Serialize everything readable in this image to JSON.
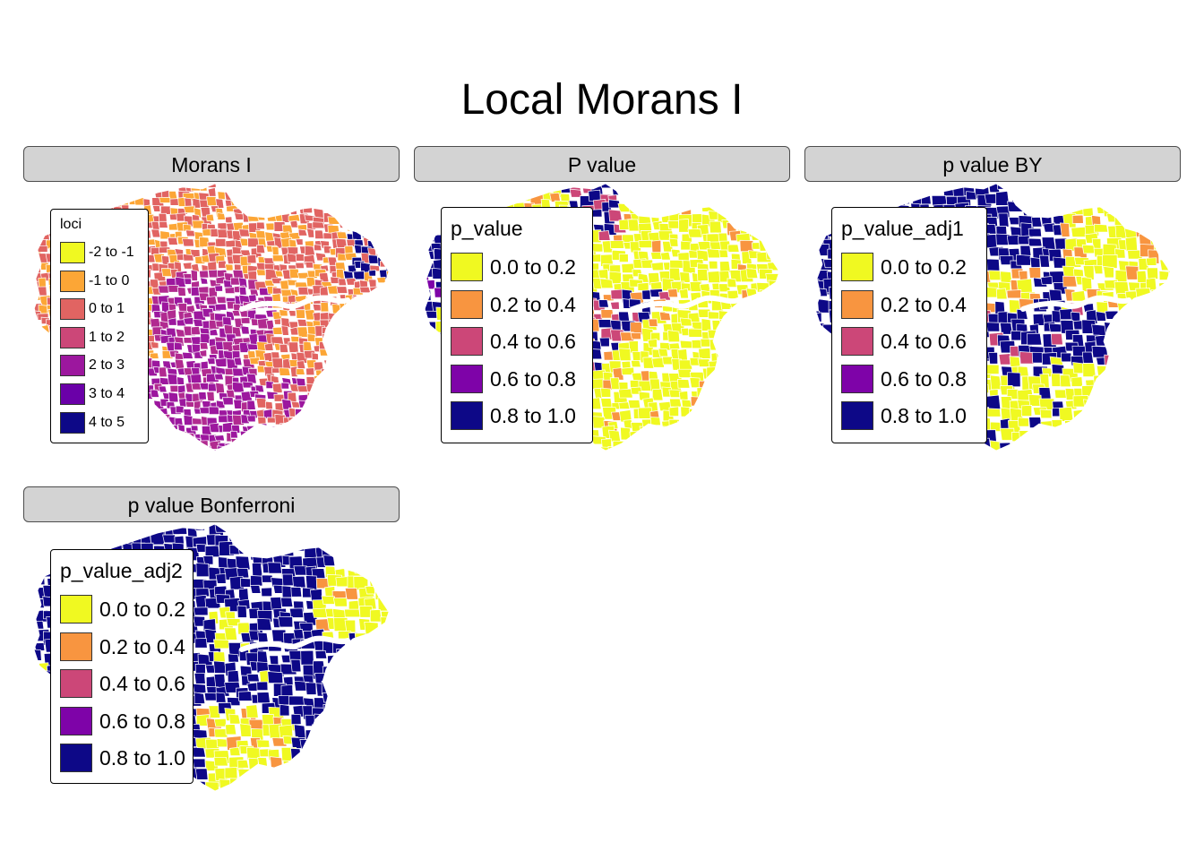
{
  "title": "Local Morans I",
  "palette": {
    "c1": "#f0f921",
    "c2": "#fca636",
    "c3": "#e16462",
    "c4": "#b12a90",
    "c5": "#6a00a8",
    "c6": "#0d0887",
    "c_orange": "#f89540",
    "c_pink": "#cc4778",
    "c_purple": "#7e03a8"
  },
  "panels": [
    {
      "id": "morans",
      "strip_label": "Morans I",
      "legend": {
        "title": "loci",
        "items": [
          {
            "label": "-2 to -1",
            "color": "#f0f921"
          },
          {
            "label": "-1 to 0",
            "color": "#fca636"
          },
          {
            "label": "0 to 1",
            "color": "#e16462"
          },
          {
            "label": "1 to 2",
            "color": "#cc4778"
          },
          {
            "label": "2 to 3",
            "color": "#9c179e"
          },
          {
            "label": "3 to 4",
            "color": "#6a00a8"
          },
          {
            "label": "4 to 5",
            "color": "#0d0887"
          }
        ]
      }
    },
    {
      "id": "pvalue",
      "strip_label": "P value",
      "legend": {
        "title": "p_value",
        "items": [
          {
            "label": "0.0 to 0.2",
            "color": "#f0f921"
          },
          {
            "label": "0.2 to 0.4",
            "color": "#f89540"
          },
          {
            "label": "0.4 to 0.6",
            "color": "#cc4778"
          },
          {
            "label": "0.6 to 0.8",
            "color": "#7e03a8"
          },
          {
            "label": "0.8 to 1.0",
            "color": "#0d0887"
          }
        ]
      }
    },
    {
      "id": "pby",
      "strip_label": "p value BY",
      "legend": {
        "title": "p_value_adj1",
        "items": [
          {
            "label": "0.0 to 0.2",
            "color": "#f0f921"
          },
          {
            "label": "0.2 to 0.4",
            "color": "#f89540"
          },
          {
            "label": "0.4 to 0.6",
            "color": "#cc4778"
          },
          {
            "label": "0.6 to 0.8",
            "color": "#7e03a8"
          },
          {
            "label": "0.8 to 1.0",
            "color": "#0d0887"
          }
        ]
      }
    },
    {
      "id": "pbonf",
      "strip_label": "p value Bonferroni",
      "legend": {
        "title": "p_value_adj2",
        "items": [
          {
            "label": "0.0 to 0.2",
            "color": "#f0f921"
          },
          {
            "label": "0.2 to 0.4",
            "color": "#f89540"
          },
          {
            "label": "0.4 to 0.6",
            "color": "#cc4778"
          },
          {
            "label": "0.6 to 0.8",
            "color": "#7e03a8"
          },
          {
            "label": "0.8 to 1.0",
            "color": "#0d0887"
          }
        ]
      }
    }
  ]
}
